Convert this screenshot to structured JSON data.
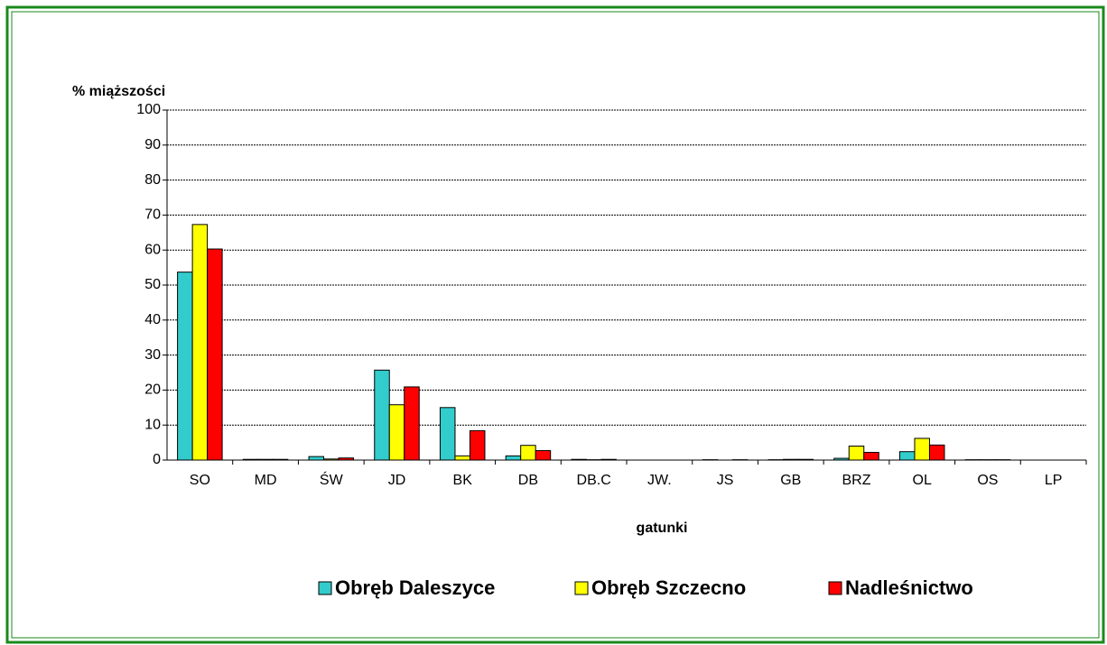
{
  "chart_data": {
    "type": "bar",
    "y_label": "% miąższości",
    "x_label": "gatunki",
    "categories": [
      "SO",
      "MD",
      "ŚW",
      "JD",
      "BK",
      "DB",
      "DB.C",
      "JW.",
      "JS",
      "GB",
      "BRZ",
      "OL",
      "OS",
      "LP"
    ],
    "series": [
      {
        "name": "Obręb Daleszyce",
        "color": "#33cccc",
        "values": [
          53.7,
          0.2,
          1.0,
          25.7,
          15.0,
          1.2,
          0.2,
          0,
          0.1,
          0.1,
          0.5,
          2.4,
          0.1,
          0
        ]
      },
      {
        "name": "Obręb Szczecno",
        "color": "#ffff00",
        "values": [
          67.3,
          0.2,
          0.3,
          15.8,
          1.2,
          4.2,
          0.1,
          0,
          0,
          0.2,
          4.0,
          6.2,
          0.1,
          0
        ]
      },
      {
        "name": "Nadleśnictwo",
        "color": "#ff0000",
        "values": [
          60.3,
          0.2,
          0.6,
          20.9,
          8.4,
          2.7,
          0.2,
          0,
          0.1,
          0.2,
          2.2,
          4.3,
          0.1,
          0
        ]
      }
    ],
    "ylim": [
      0,
      100
    ],
    "yticks": [
      0,
      10,
      20,
      30,
      40,
      50,
      60,
      70,
      80,
      90,
      100
    ],
    "grid": true,
    "legend": "bottom"
  }
}
